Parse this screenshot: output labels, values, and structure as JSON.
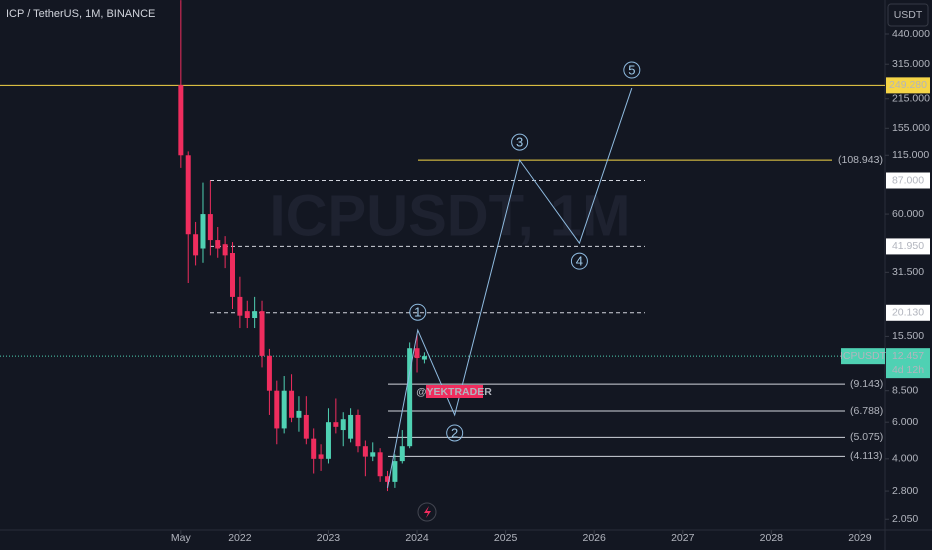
{
  "chart_data": {
    "type": "candlestick",
    "title": "ICP / TetherUS, 1M, BINANCE",
    "currency": "USDT",
    "watermark": "ICPUSDT, 1M",
    "symbol_label": "ICPUSDT",
    "countdown": "4d 12h",
    "last_price": {
      "value": 12.457,
      "label": "12.457"
    },
    "author": "@YEKTRADER",
    "up_color": "#4fd1b3",
    "down_color": "#ef2d5e",
    "log_scale": true,
    "ylim": [
      1.82,
      641
    ],
    "yticks": [
      {
        "value": 440,
        "label": "440.000"
      },
      {
        "value": 315,
        "label": "315.000"
      },
      {
        "value": 215,
        "label": "215.000"
      },
      {
        "value": 155,
        "label": "155.000"
      },
      {
        "value": 115,
        "label": "115.000"
      },
      {
        "value": 60,
        "label": "60.000"
      },
      {
        "value": 31.5,
        "label": "31.500"
      },
      {
        "value": 15.5,
        "label": "15.500"
      },
      {
        "value": 8.5,
        "label": "8.500"
      },
      {
        "value": 6,
        "label": "6.000"
      },
      {
        "value": 4,
        "label": "4.000"
      },
      {
        "value": 2.8,
        "label": "2.800"
      },
      {
        "value": 2.05,
        "label": "2.050"
      }
    ],
    "xlim": [
      -24.5,
      95.4
    ],
    "xticks": [
      {
        "value": 0,
        "label": "May"
      },
      {
        "value": 8,
        "label": "2022"
      },
      {
        "value": 20,
        "label": "2023"
      },
      {
        "value": 32,
        "label": "2024"
      },
      {
        "value": 44,
        "label": "2025"
      },
      {
        "value": 56,
        "label": "2026"
      },
      {
        "value": 68,
        "label": "2027"
      },
      {
        "value": 80,
        "label": "2028"
      },
      {
        "value": 92,
        "label": "2029"
      }
    ],
    "candles": {
      "open": [
        250,
        115,
        48,
        41,
        60,
        45,
        43,
        39,
        24,
        20.5,
        19,
        20.5,
        12.5,
        8.5,
        5.6,
        8.5,
        6.3,
        6.5,
        5.0,
        4.2,
        4.0,
        6.0,
        5.5,
        5.0,
        6.5,
        4.6,
        4.1,
        4.3,
        3.3,
        3.1,
        3.9,
        4.6,
        13.6,
        12.0
      ],
      "high": [
        640,
        120,
        55,
        85,
        87,
        52,
        47,
        44,
        30,
        23,
        24,
        23,
        13.5,
        9.5,
        10,
        10.2,
        8,
        8,
        5.6,
        4.7,
        7,
        7.8,
        6.7,
        7,
        6.9,
        4.9,
        4.8,
        4.5,
        3.5,
        4.2,
        5.5,
        14.5,
        16,
        13
      ],
      "low": [
        100,
        28,
        34,
        35,
        38,
        37,
        33,
        21,
        17,
        17,
        17,
        11,
        6.5,
        4.7,
        5.3,
        6,
        5.4,
        4.7,
        3.4,
        3.5,
        3.8,
        5.3,
        4.6,
        4.8,
        4.3,
        3.3,
        3.9,
        3.1,
        2.8,
        2.9,
        3.8,
        4.5,
        10.4,
        11.5
      ],
      "close": [
        115,
        48,
        38,
        60,
        45,
        41,
        38,
        24,
        19.5,
        19,
        20.5,
        12.5,
        8.5,
        5.6,
        8.5,
        6.3,
        6.8,
        5.0,
        4.0,
        4.0,
        6.0,
        5.7,
        6.2,
        6.5,
        4.6,
        4.1,
        4.3,
        3.3,
        3.1,
        3.9,
        4.6,
        13.6,
        12.2,
        12.457
      ]
    },
    "levels": [
      {
        "value": 249.28,
        "label": "249.280",
        "kind": "axis",
        "color": "#f5d547"
      },
      {
        "value": 108.943,
        "label": "(108.943)",
        "kind": "target",
        "color": "#f5d547"
      },
      {
        "value": 87,
        "label": "87.000",
        "kind": "dashed",
        "color": "#d1d4dc"
      },
      {
        "value": 41.95,
        "label": "41.950",
        "kind": "dashed",
        "color": "#d1d4dc"
      },
      {
        "value": 20.13,
        "label": "20.130",
        "kind": "dashed",
        "color": "#d1d4dc"
      },
      {
        "value": 9.143,
        "label": "(9.143)",
        "kind": "fib",
        "color": "#d1d4dc"
      },
      {
        "value": 6.788,
        "label": "(6.788)",
        "kind": "fib",
        "color": "#d1d4dc"
      },
      {
        "value": 5.075,
        "label": "(5.075)",
        "kind": "fib",
        "color": "#d1d4dc"
      },
      {
        "value": 4.113,
        "label": "(4.113)",
        "kind": "fib",
        "color": "#d1d4dc"
      }
    ],
    "wave": {
      "color": "#8fbbe0",
      "points": [
        {
          "x": 28,
          "value": 2.9
        },
        {
          "x": 32.1,
          "value": 16.6,
          "label": "1"
        },
        {
          "x": 37.1,
          "value": 6.5,
          "label": "2"
        },
        {
          "x": 45.9,
          "value": 109,
          "label": "3"
        },
        {
          "x": 54,
          "value": 43.5,
          "label": "4"
        },
        {
          "x": 61.1,
          "value": 242,
          "label": "5"
        }
      ]
    }
  }
}
